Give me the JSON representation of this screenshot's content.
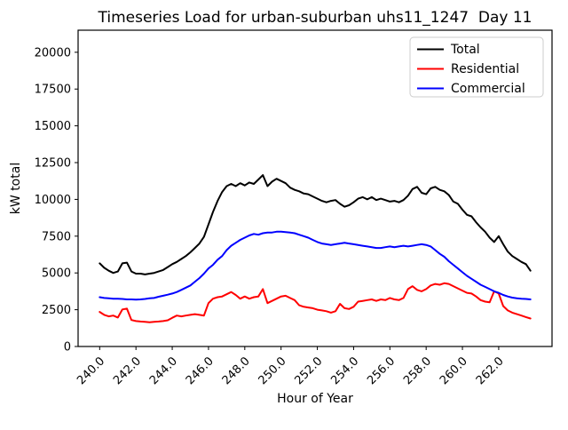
{
  "figure": {
    "background": "#ffffff",
    "spine_color": "#000000"
  },
  "chart_data": {
    "type": "line",
    "title": "Timeseries Load for urban-suburban uhs11_1247  Day 11",
    "xlabel": "Hour of Year",
    "ylabel": "kW total",
    "grid": false,
    "legend_position": "upper right",
    "xlim": [
      238.81,
      264.94
    ],
    "ylim": [
      0,
      21500
    ],
    "xticks": [
      240.0,
      242.0,
      244.0,
      246.0,
      248.0,
      250.0,
      252.0,
      254.0,
      256.0,
      258.0,
      260.0,
      262.0
    ],
    "xtick_labels": [
      "240.0",
      "242.0",
      "244.0",
      "246.0",
      "248.0",
      "250.0",
      "252.0",
      "254.0",
      "256.0",
      "258.0",
      "260.0",
      "262.0"
    ],
    "yticks": [
      0,
      2500,
      5000,
      7500,
      10000,
      12500,
      15000,
      17500,
      20000
    ],
    "ytick_labels": [
      "0",
      "2500",
      "5000",
      "7500",
      "10000",
      "12500",
      "15000",
      "17500",
      "20000"
    ],
    "x": [
      240.0,
      240.25,
      240.5,
      240.75,
      241.0,
      241.25,
      241.5,
      241.75,
      242.0,
      242.25,
      242.5,
      242.75,
      243.0,
      243.25,
      243.5,
      243.75,
      244.0,
      244.25,
      244.5,
      244.75,
      245.0,
      245.25,
      245.5,
      245.75,
      246.0,
      246.25,
      246.5,
      246.75,
      247.0,
      247.25,
      247.5,
      247.75,
      248.0,
      248.25,
      248.5,
      248.75,
      249.0,
      249.25,
      249.5,
      249.75,
      250.0,
      250.25,
      250.5,
      250.75,
      251.0,
      251.25,
      251.5,
      251.75,
      252.0,
      252.25,
      252.5,
      252.75,
      253.0,
      253.25,
      253.5,
      253.75,
      254.0,
      254.25,
      254.5,
      254.75,
      255.0,
      255.25,
      255.5,
      255.75,
      256.0,
      256.25,
      256.5,
      256.75,
      257.0,
      257.25,
      257.5,
      257.75,
      258.0,
      258.25,
      258.5,
      258.75,
      259.0,
      259.25,
      259.5,
      259.75,
      260.0,
      260.25,
      260.5,
      260.75,
      261.0,
      261.25,
      261.5,
      261.75,
      262.0,
      262.25,
      262.5,
      262.75,
      263.0,
      263.25,
      263.5,
      263.75
    ],
    "series": [
      {
        "name": "Total",
        "color": "#000000",
        "values": [
          5650,
          5350,
          5150,
          5000,
          5100,
          5650,
          5700,
          5100,
          4950,
          4950,
          4900,
          4950,
          5000,
          5100,
          5200,
          5400,
          5600,
          5750,
          5950,
          6150,
          6400,
          6700,
          7000,
          7450,
          8300,
          9150,
          9900,
          10500,
          10900,
          11050,
          10900,
          11100,
          10950,
          11150,
          11050,
          11350,
          11650,
          10900,
          11200,
          11400,
          11250,
          11100,
          10800,
          10650,
          10550,
          10400,
          10350,
          10200,
          10050,
          9900,
          9800,
          9900,
          9950,
          9700,
          9500,
          9600,
          9800,
          10050,
          10150,
          10000,
          10150,
          9950,
          10050,
          9950,
          9850,
          9900,
          9800,
          9950,
          10250,
          10700,
          10850,
          10450,
          10350,
          10750,
          10850,
          10650,
          10550,
          10300,
          9850,
          9700,
          9300,
          8950,
          8850,
          8450,
          8100,
          7800,
          7400,
          7100,
          7500,
          6950,
          6450,
          6150,
          5950,
          5750,
          5600,
          5150
        ]
      },
      {
        "name": "Residential",
        "color": "#ff0000",
        "values": [
          2350,
          2150,
          2050,
          2100,
          1970,
          2520,
          2570,
          1800,
          1730,
          1700,
          1680,
          1650,
          1680,
          1700,
          1730,
          1780,
          1950,
          2100,
          2050,
          2100,
          2150,
          2200,
          2150,
          2100,
          2950,
          3250,
          3350,
          3400,
          3550,
          3700,
          3500,
          3250,
          3400,
          3250,
          3350,
          3400,
          3900,
          2950,
          3100,
          3250,
          3400,
          3450,
          3300,
          3150,
          2800,
          2700,
          2650,
          2600,
          2500,
          2450,
          2400,
          2300,
          2400,
          2900,
          2600,
          2550,
          2700,
          3050,
          3100,
          3150,
          3200,
          3100,
          3200,
          3150,
          3300,
          3200,
          3150,
          3300,
          3900,
          4100,
          3850,
          3750,
          3900,
          4150,
          4250,
          4200,
          4300,
          4250,
          4100,
          3950,
          3800,
          3650,
          3600,
          3400,
          3150,
          3050,
          3000,
          3750,
          3600,
          2750,
          2450,
          2300,
          2200,
          2100,
          2000,
          1900
        ]
      },
      {
        "name": "Commercial",
        "color": "#0000ff",
        "values": [
          3350,
          3300,
          3280,
          3250,
          3250,
          3230,
          3200,
          3200,
          3180,
          3200,
          3230,
          3280,
          3300,
          3380,
          3450,
          3520,
          3600,
          3700,
          3850,
          4000,
          4150,
          4400,
          4650,
          4950,
          5300,
          5550,
          5900,
          6150,
          6550,
          6850,
          7050,
          7250,
          7400,
          7550,
          7650,
          7600,
          7700,
          7750,
          7750,
          7800,
          7800,
          7780,
          7750,
          7700,
          7600,
          7500,
          7400,
          7250,
          7100,
          7000,
          6950,
          6900,
          6950,
          7000,
          7050,
          7000,
          6950,
          6900,
          6850,
          6800,
          6750,
          6700,
          6700,
          6750,
          6800,
          6750,
          6800,
          6850,
          6800,
          6850,
          6900,
          6950,
          6900,
          6800,
          6550,
          6300,
          6100,
          5800,
          5550,
          5300,
          5050,
          4800,
          4600,
          4400,
          4200,
          4050,
          3900,
          3750,
          3650,
          3500,
          3400,
          3320,
          3280,
          3250,
          3230,
          3200
        ]
      }
    ],
    "legend": {
      "frame_color": "#cccccc",
      "entries": [
        {
          "label": "Total",
          "color": "#000000"
        },
        {
          "label": "Residential",
          "color": "#ff0000"
        },
        {
          "label": "Commercial",
          "color": "#0000ff"
        }
      ]
    }
  }
}
